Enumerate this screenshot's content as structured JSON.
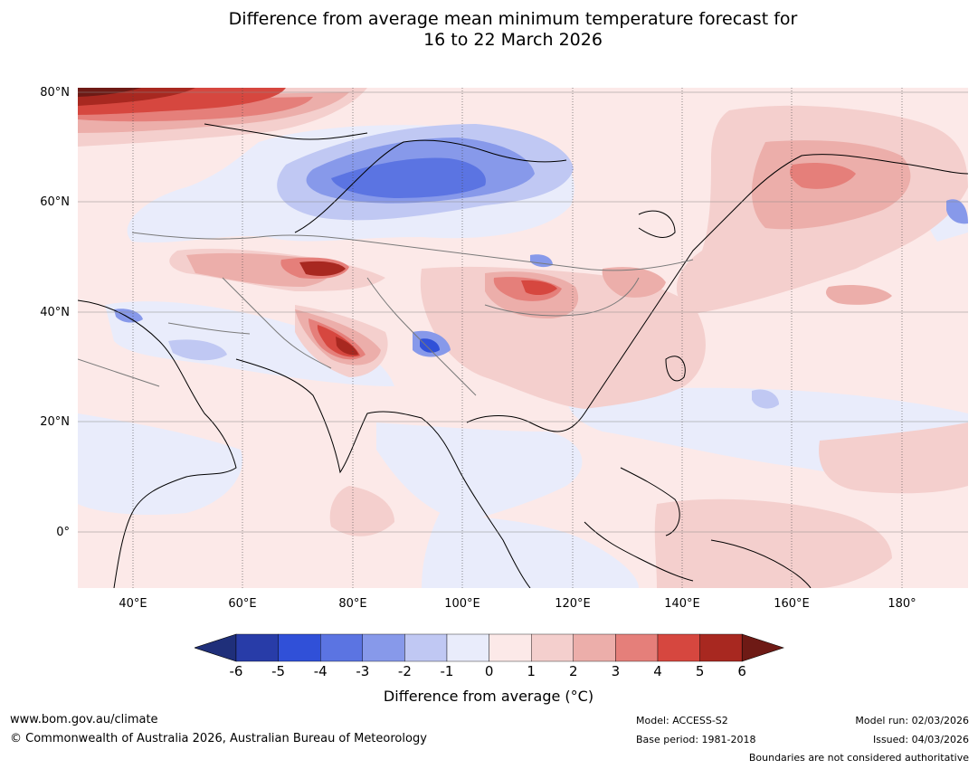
{
  "title_line1": "Difference from average mean minimum temperature forecast for",
  "title_line2": "16 to 22 March 2026",
  "lat_labels": [
    "80°N",
    "60°N",
    "40°N",
    "20°N",
    "0°"
  ],
  "lon_labels": [
    "40°E",
    "60°E",
    "80°E",
    "100°E",
    "120°E",
    "140°E",
    "160°E",
    "180°"
  ],
  "colorbar": {
    "ticks": [
      "-6",
      "-5",
      "-4",
      "-3",
      "-2",
      "-1",
      "0",
      "1",
      "2",
      "3",
      "4",
      "5",
      "6"
    ],
    "label": "Difference from average (°C)",
    "colors": [
      "#1f2f7a",
      "#283ca8",
      "#3050d8",
      "#5b74e2",
      "#8799ea",
      "#c0c8f3",
      "#e9ecfb",
      "#fce9e8",
      "#f4cfcd",
      "#ecaeaa",
      "#e57f7a",
      "#d6473f",
      "#a82820",
      "#6e1a15"
    ]
  },
  "footer": {
    "website": "www.bom.gov.au/climate",
    "copyright": "© Commonwealth of Australia 2026, Australian Bureau of Meteorology",
    "model": "Model: ACCESS-S2",
    "base_period": "Base period: 1981-2018",
    "model_run": "Model run: 02/03/2026",
    "issued": "Issued: 04/03/2026",
    "disclaimer": "Boundaries are not considered authoritative"
  }
}
